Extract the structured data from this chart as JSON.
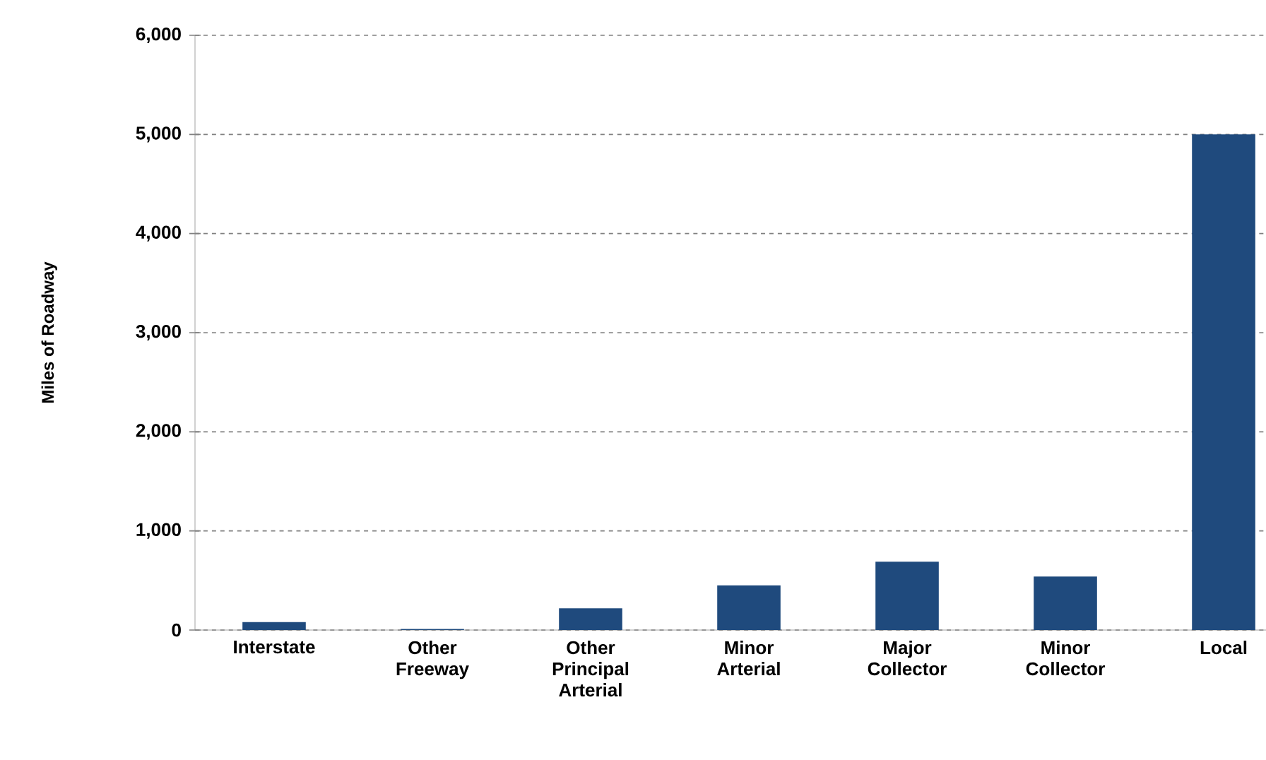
{
  "chart_data": {
    "type": "bar",
    "ylabel": "Miles of Roadway",
    "categories": [
      "Interstate",
      "Other Freeway",
      "Other Principal Arterial",
      "Minor Arterial",
      "Major Collector",
      "Minor Collector",
      "Local"
    ],
    "values": [
      80,
      10,
      220,
      450,
      690,
      540,
      5000
    ],
    "color": "#1f4a7d",
    "ylim": [
      0,
      6000
    ],
    "yticks": [
      0,
      {
        "value": 1000,
        "label": "1,000"
      },
      {
        "value": 2000,
        "label": "2,000"
      },
      {
        "value": 3000,
        "label": "3,000"
      },
      {
        "value": 4000,
        "label": "4,000"
      },
      {
        "value": 5000,
        "label": "5,000"
      },
      {
        "value": 6000,
        "label": "6,000"
      }
    ],
    "grid": "y"
  }
}
